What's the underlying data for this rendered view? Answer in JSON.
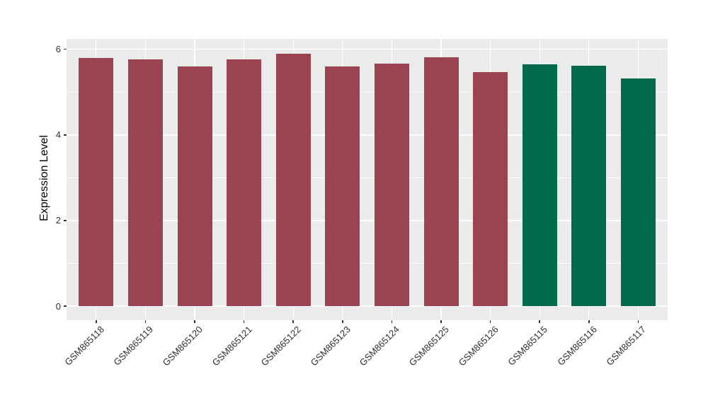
{
  "figure": {
    "background": "#FFFFFF"
  },
  "chart_data": {
    "type": "bar",
    "title": "",
    "xlabel": "",
    "ylabel": "Expression Level",
    "categories": [
      "GSM865118",
      "GSM865119",
      "GSM865120",
      "GSM865121",
      "GSM865122",
      "GSM865123",
      "GSM865124",
      "GSM865125",
      "GSM865126",
      "GSM865115",
      "GSM865116",
      "GSM865117"
    ],
    "values": [
      5.8,
      5.76,
      5.6,
      5.76,
      5.9,
      5.6,
      5.66,
      5.82,
      5.47,
      5.65,
      5.61,
      5.31
    ],
    "bar_colors": [
      "#9A4452",
      "#9A4452",
      "#9A4452",
      "#9A4452",
      "#9A4452",
      "#9A4452",
      "#9A4452",
      "#9A4452",
      "#9A4452",
      "#016A4D",
      "#016A4D",
      "#016A4D"
    ],
    "y_ticks": [
      "0",
      "2",
      "4",
      "6"
    ],
    "y_tick_values": [
      0,
      2,
      4,
      6
    ],
    "y_minor_values": [
      1,
      3,
      5
    ],
    "ylim": [
      -0.33,
      6.24
    ],
    "x_tick_rotation_deg": 45,
    "legend": "none",
    "grid": "major and minor horizontal white, major vertical white at category centers",
    "colors": {
      "panel_bg": "#EBEBEB",
      "grid": "#FFFFFF",
      "bar_maroon": "#9A4452",
      "bar_green": "#016A4D",
      "axis_text": "#303030",
      "tick_mark": "#333333"
    }
  }
}
